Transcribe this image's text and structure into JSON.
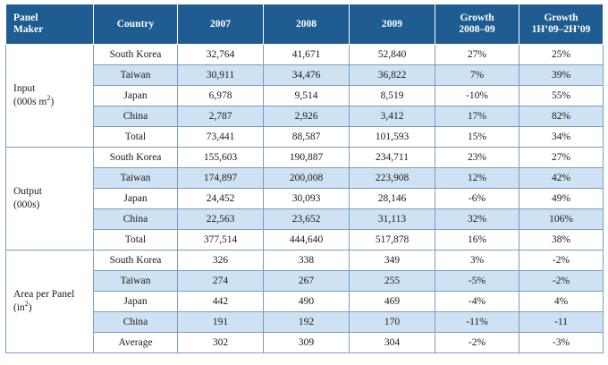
{
  "header": {
    "col0_line1": "Panel",
    "col0_line2": "Maker",
    "col1": "Country",
    "col2": "2007",
    "col3": "2008",
    "col4": "2009",
    "col5_line1": "Growth",
    "col5_line2": "2008–09",
    "col6_line1": "Growth",
    "col6_line2": "1H’09–2H’09"
  },
  "groups": [
    {
      "label_line1": "Input",
      "label_line2": "(000s m",
      "label_sup": "2",
      "label_tail": ")",
      "rows": [
        [
          "South Korea",
          "32,764",
          "41,671",
          "52,840",
          "27%",
          "25%"
        ],
        [
          "Taiwan",
          "30,911",
          "34,476",
          "36,822",
          "7%",
          "39%"
        ],
        [
          "Japan",
          "6,978",
          "9,514",
          "8,519",
          "-10%",
          "55%"
        ],
        [
          "China",
          "2,787",
          "2,926",
          "3,412",
          "17%",
          "82%"
        ],
        [
          "Total",
          "73,441",
          "88,587",
          "101,593",
          "15%",
          "34%"
        ]
      ]
    },
    {
      "label_line1": "Output",
      "label_line2": "(000s)",
      "label_sup": "",
      "label_tail": "",
      "rows": [
        [
          "South Korea",
          "155,603",
          "190,887",
          "234,711",
          "23%",
          "27%"
        ],
        [
          "Taiwan",
          "174,897",
          "200,008",
          "223,908",
          "12%",
          "42%"
        ],
        [
          "Japan",
          "24,452",
          "30,093",
          "28,146",
          "-6%",
          "49%"
        ],
        [
          "China",
          "22,563",
          "23,652",
          "31,113",
          "32%",
          "106%"
        ],
        [
          "Total",
          "377,514",
          "444,640",
          "517,878",
          "16%",
          "38%"
        ]
      ]
    },
    {
      "label_line1": "Area per Panel",
      "label_line2": "(in",
      "label_sup": "2",
      "label_tail": ")",
      "rows": [
        [
          "South Korea",
          "326",
          "338",
          "349",
          "3%",
          "-2%"
        ],
        [
          "Taiwan",
          "274",
          "267",
          "255",
          "-5%",
          "-2%"
        ],
        [
          "Japan",
          "442",
          "490",
          "469",
          "-4%",
          "4%"
        ],
        [
          "China",
          "191",
          "192",
          "170",
          "-11%",
          "-11"
        ],
        [
          "Average",
          "302",
          "309",
          "304",
          "-2%",
          "-3%"
        ]
      ]
    }
  ]
}
